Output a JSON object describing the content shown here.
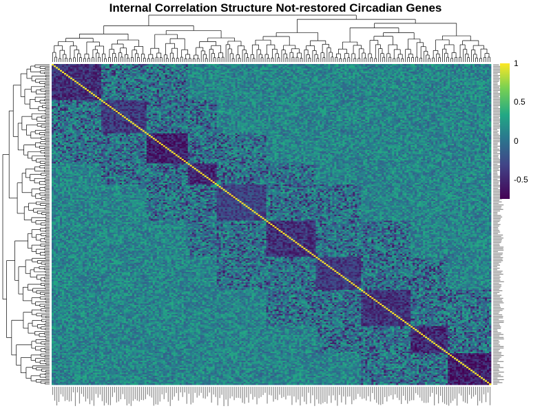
{
  "chart_data": {
    "type": "heatmap",
    "title": "Internal Correlation Structure Not-restored Circadian Genes",
    "colorscale": [
      "#440154",
      "#414487",
      "#2a788e",
      "#22a884",
      "#7ad151",
      "#fde725"
    ],
    "legend": {
      "position": "right",
      "range": [
        -0.75,
        1
      ],
      "ticks": [
        {
          "label": "1",
          "value": 1
        },
        {
          "label": "0.5",
          "value": 0.5
        },
        {
          "label": "0",
          "value": 0
        },
        {
          "label": "-0.5",
          "value": -0.5
        }
      ]
    },
    "row_dendrogram": true,
    "column_dendrogram": true,
    "genes_clustered": 213,
    "diagonal_value": 1,
    "clusters": [
      {
        "start": 0,
        "end": 24,
        "strength": -0.5
      },
      {
        "start": 24,
        "end": 46,
        "strength": -0.45
      },
      {
        "start": 44,
        "end": 66,
        "strength": -0.6
      },
      {
        "start": 62,
        "end": 80,
        "strength": -0.55
      },
      {
        "start": 78,
        "end": 104,
        "strength": -0.4
      },
      {
        "start": 104,
        "end": 128,
        "strength": -0.5
      },
      {
        "start": 128,
        "end": 150,
        "strength": -0.45
      },
      {
        "start": 150,
        "end": 174,
        "strength": -0.5
      },
      {
        "start": 174,
        "end": 192,
        "strength": -0.55
      },
      {
        "start": 192,
        "end": 213,
        "strength": -0.6
      }
    ]
  }
}
